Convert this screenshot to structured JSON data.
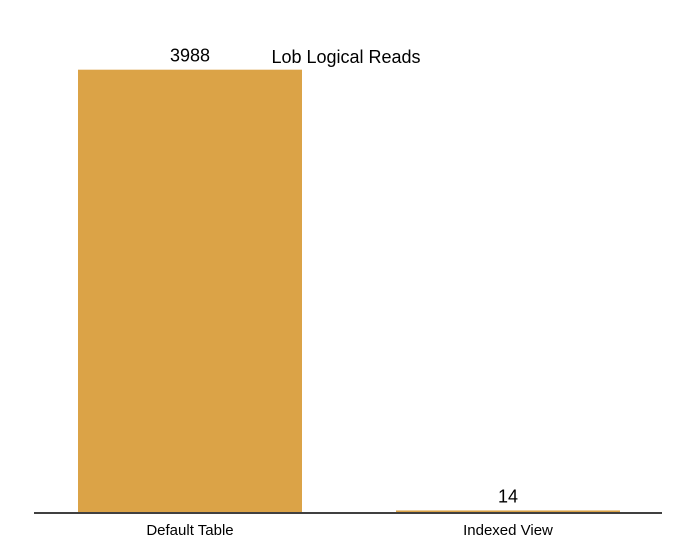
{
  "chart_data": {
    "type": "bar",
    "title": "Lob Logical Reads",
    "categories": [
      "Default Table",
      "Indexed View"
    ],
    "values": [
      3988,
      14
    ],
    "data_labels": [
      "3988",
      "14"
    ],
    "xlabel": "",
    "ylabel": "",
    "ylim": [
      0,
      4400
    ],
    "grid": false,
    "legend": "none",
    "bar_color": "#DBA347",
    "axis_color": "#000000"
  }
}
